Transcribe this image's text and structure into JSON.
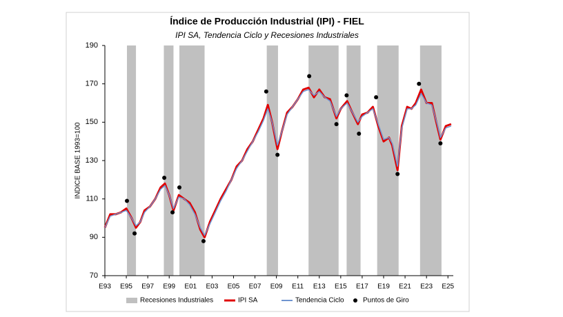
{
  "chart_data": {
    "type": "line",
    "title": "Índice de Producción Industrial (IPI) - FIEL",
    "subtitle": "IPI SA, Tendencia Ciclo y Recesiones Industriales",
    "y_label": "INDICE BASE 1993=100",
    "xlim": [
      1993,
      2025.5
    ],
    "ylim": [
      70,
      190
    ],
    "yticks": [
      70,
      90,
      110,
      130,
      150,
      170,
      190
    ],
    "xticks": [
      {
        "value": 1993,
        "label": "E93"
      },
      {
        "value": 1995,
        "label": "E95"
      },
      {
        "value": 1997,
        "label": "E97"
      },
      {
        "value": 1999,
        "label": "E99"
      },
      {
        "value": 2001,
        "label": "E01"
      },
      {
        "value": 2003,
        "label": "E03"
      },
      {
        "value": 2005,
        "label": "E05"
      },
      {
        "value": 2007,
        "label": "E07"
      },
      {
        "value": 2009,
        "label": "E09"
      },
      {
        "value": 2011,
        "label": "E11"
      },
      {
        "value": 2013,
        "label": "E13"
      },
      {
        "value": 2015,
        "label": "E15"
      },
      {
        "value": 2017,
        "label": "E17"
      },
      {
        "value": 2019,
        "label": "E19"
      },
      {
        "value": 2021,
        "label": "E21"
      },
      {
        "value": 2023,
        "label": "E23"
      },
      {
        "value": 2025,
        "label": "E25"
      }
    ],
    "recessions": {
      "name": "Recesiones Industriales",
      "color": "#c0c0c0",
      "periods": [
        [
          1995.06,
          1995.9
        ],
        [
          1998.5,
          1999.4
        ],
        [
          1999.95,
          2002.3
        ],
        [
          2008.1,
          2009.15
        ],
        [
          2012.0,
          2014.8
        ],
        [
          2015.55,
          2016.85
        ],
        [
          2018.4,
          2020.4
        ],
        [
          2022.4,
          2024.4
        ]
      ]
    },
    "x": [
      1993.0,
      1993.5,
      1994.0,
      1994.5,
      1995.0,
      1995.5,
      1995.9,
      1996.3,
      1996.7,
      1997.2,
      1997.7,
      1998.2,
      1998.6,
      1999.0,
      1999.4,
      1999.9,
      2000.4,
      2000.9,
      2001.4,
      2001.9,
      2002.3,
      2002.8,
      2003.3,
      2003.8,
      2004.3,
      2004.8,
      2005.3,
      2005.8,
      2006.3,
      2006.8,
      2007.3,
      2007.8,
      2008.2,
      2008.6,
      2009.1,
      2009.5,
      2010.0,
      2010.5,
      2011.0,
      2011.5,
      2012.0,
      2012.5,
      2013.0,
      2013.5,
      2014.0,
      2014.6,
      2015.0,
      2015.6,
      2016.0,
      2016.6,
      2017.0,
      2017.5,
      2018.0,
      2018.5,
      2019.0,
      2019.5,
      2019.8,
      2020.3,
      2020.7,
      2021.2,
      2021.6,
      2022.0,
      2022.5,
      2023.0,
      2023.5,
      2024.0,
      2024.3,
      2024.8,
      2025.3
    ],
    "series": [
      {
        "name": "IPI SA",
        "color": "#e00000",
        "values": [
          95,
          102,
          102,
          103,
          105,
          100,
          95,
          98,
          104,
          106,
          110,
          116,
          118,
          112,
          104,
          112,
          110,
          108,
          103,
          94,
          90,
          98,
          104,
          110,
          115,
          120,
          127,
          130,
          136,
          140,
          146,
          152,
          159,
          150,
          136,
          145,
          155,
          158,
          162,
          167,
          168,
          163,
          167,
          163,
          162,
          152,
          157,
          161,
          156,
          149,
          154,
          155,
          158,
          148,
          140,
          142,
          138,
          125,
          148,
          158,
          157,
          160,
          167,
          160,
          160,
          148,
          141,
          148,
          149
        ]
      },
      {
        "name": "Tendencia Ciclo",
        "color": "#6f94d0",
        "values": [
          95,
          101,
          102,
          103,
          104,
          100,
          96,
          98,
          103,
          106,
          110,
          115,
          117,
          112,
          105,
          111,
          110,
          107,
          102,
          95,
          91,
          97,
          103,
          109,
          114,
          120,
          126,
          130,
          135,
          140,
          145,
          151,
          157,
          150,
          138,
          145,
          154,
          158,
          162,
          166,
          167,
          164,
          166,
          163,
          161,
          153,
          157,
          160,
          156,
          150,
          153,
          155,
          157,
          149,
          141,
          142,
          139,
          127,
          147,
          157,
          157,
          159,
          165,
          160,
          159,
          149,
          142,
          147,
          148
        ]
      }
    ],
    "turning_points": {
      "name": "Puntos de Giro",
      "color": "#000000",
      "x": [
        1995.06,
        1995.77,
        1998.54,
        1999.31,
        1999.95,
        2002.2,
        2008.05,
        2009.1,
        2012.06,
        2014.6,
        2015.55,
        2016.7,
        2018.3,
        2020.3,
        2022.3,
        2024.3
      ],
      "values": [
        109,
        92,
        121,
        103,
        116,
        88,
        166,
        133,
        174,
        149,
        164,
        144,
        163,
        123,
        170,
        139
      ]
    }
  }
}
